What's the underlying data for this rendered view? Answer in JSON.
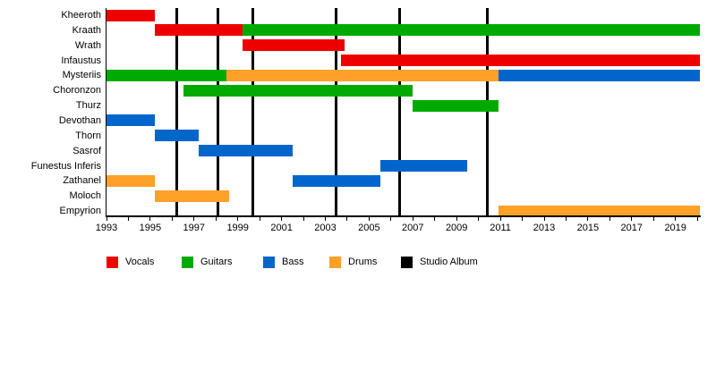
{
  "chart_data": {
    "type": "gantt-timeline",
    "x_axis": {
      "min": 1993,
      "max": 2020.1,
      "minor_tick_every": 1,
      "label_years": [
        1993,
        1995,
        1997,
        1999,
        2001,
        2003,
        2005,
        2007,
        2009,
        2011,
        2013,
        2015,
        2017,
        2019
      ],
      "labels": [
        "1993",
        "1995",
        "1997",
        "1999",
        "2001",
        "2003",
        "2005",
        "2007",
        "2009",
        "2011",
        "2013",
        "2015",
        "2017",
        "2019"
      ]
    },
    "colors": {
      "Vocals": "#EE0000",
      "Guitars": "#00AA00",
      "Bass": "#0066CC",
      "Drums": "#FFA028",
      "Studio Album": "#000000"
    },
    "legend": [
      {
        "label": "Vocals",
        "color": "#EE0000"
      },
      {
        "label": "Guitars",
        "color": "#00AA00"
      },
      {
        "label": "Bass",
        "color": "#0066CC"
      },
      {
        "label": "Drums",
        "color": "#FFA028"
      },
      {
        "label": "Studio Album",
        "color": "#000000"
      }
    ],
    "rows": [
      {
        "name": "Kheeroth",
        "bars": [
          {
            "role": "Vocals",
            "start": 1993.0,
            "end": 1995.2
          }
        ]
      },
      {
        "name": "Kraath",
        "bars": [
          {
            "role": "Vocals",
            "start": 1995.2,
            "end": 1999.2
          },
          {
            "role": "Guitars",
            "start": 1999.2,
            "end": 2020.1
          }
        ]
      },
      {
        "name": "Wrath",
        "bars": [
          {
            "role": "Vocals",
            "start": 1999.2,
            "end": 2003.9
          }
        ]
      },
      {
        "name": "Infaustus",
        "bars": [
          {
            "role": "Vocals",
            "start": 2003.7,
            "end": 2020.1
          }
        ]
      },
      {
        "name": "Mysteriis",
        "bars": [
          {
            "role": "Guitars",
            "start": 1993.0,
            "end": 1998.5
          },
          {
            "role": "Drums",
            "start": 1998.5,
            "end": 2010.9
          },
          {
            "role": "Bass",
            "start": 2010.9,
            "end": 2020.1
          }
        ]
      },
      {
        "name": "Choronzon",
        "bars": [
          {
            "role": "Guitars",
            "start": 1996.5,
            "end": 2007.0
          }
        ]
      },
      {
        "name": "Thurz",
        "bars": [
          {
            "role": "Guitars",
            "start": 2007.0,
            "end": 2010.9
          }
        ]
      },
      {
        "name": "Devothan",
        "bars": [
          {
            "role": "Bass",
            "start": 1993.0,
            "end": 1995.2
          }
        ]
      },
      {
        "name": "Thorn",
        "bars": [
          {
            "role": "Bass",
            "start": 1995.2,
            "end": 1997.2
          }
        ]
      },
      {
        "name": "Sasrof",
        "bars": [
          {
            "role": "Bass",
            "start": 1997.2,
            "end": 2001.5
          }
        ]
      },
      {
        "name": "Funestus Inferis",
        "bars": [
          {
            "role": "Bass",
            "start": 2005.5,
            "end": 2009.5
          }
        ]
      },
      {
        "name": "Zathanel",
        "bars": [
          {
            "role": "Drums",
            "start": 1993.0,
            "end": 1995.2
          },
          {
            "role": "Bass",
            "start": 2001.5,
            "end": 2005.5
          }
        ]
      },
      {
        "name": "Moloch",
        "bars": [
          {
            "role": "Drums",
            "start": 1995.2,
            "end": 1998.6
          }
        ]
      },
      {
        "name": "Empyrion",
        "bars": [
          {
            "role": "Drums",
            "start": 2010.9,
            "end": 2020.1
          }
        ]
      }
    ],
    "studio_albums": [
      1996.2,
      1998.1,
      1999.7,
      2003.5,
      2006.4,
      2010.4
    ]
  }
}
